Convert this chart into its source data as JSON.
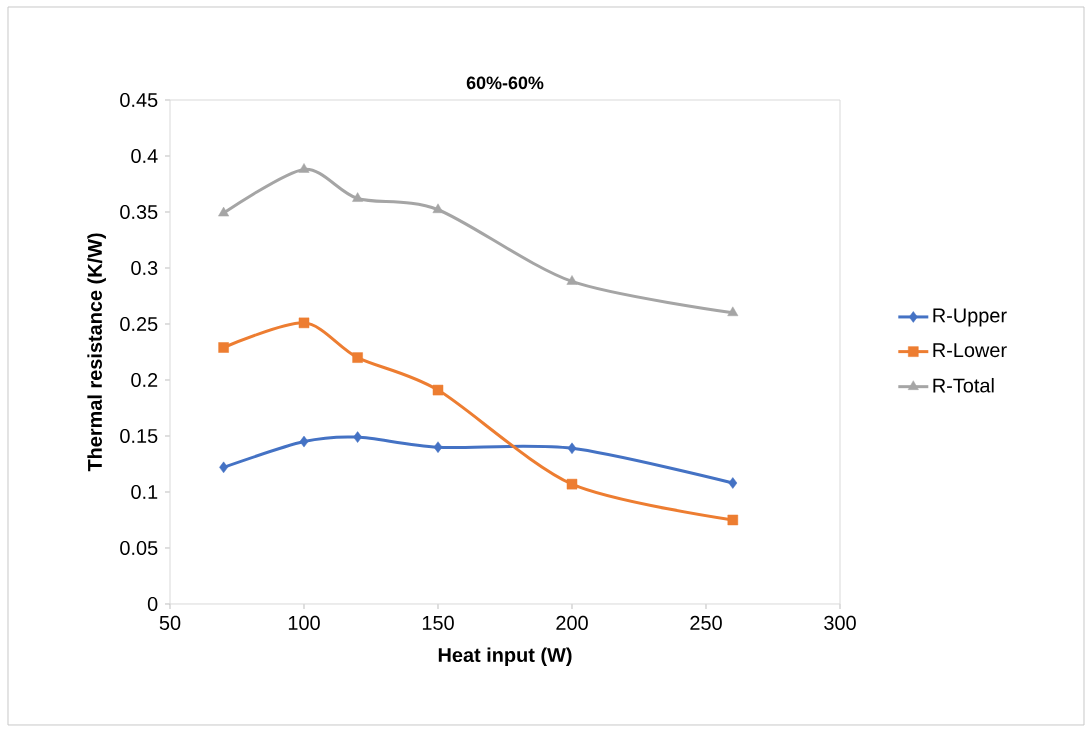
{
  "chart_data": {
    "type": "line",
    "title": "60%-60%",
    "xlabel": "Heat input (W)",
    "ylabel": "Thermal resistance (K/W)",
    "x": [
      70,
      100,
      120,
      150,
      200,
      260
    ],
    "series": [
      {
        "name": "R-Upper",
        "color": "#4472c4",
        "marker": "diamond",
        "values": [
          0.122,
          0.145,
          0.149,
          0.14,
          0.139,
          0.108
        ]
      },
      {
        "name": "R-Lower",
        "color": "#ed7d31",
        "marker": "square",
        "values": [
          0.229,
          0.251,
          0.22,
          0.191,
          0.107,
          0.075
        ]
      },
      {
        "name": "R-Total",
        "color": "#a5a5a5",
        "marker": "triangle",
        "values": [
          0.349,
          0.388,
          0.362,
          0.352,
          0.288,
          0.26
        ]
      }
    ],
    "xlim": [
      50,
      300
    ],
    "xticks": [
      50,
      100,
      150,
      200,
      250,
      300
    ],
    "ylim": [
      0,
      0.45
    ],
    "yticks": [
      0,
      0.05,
      0.1,
      0.15,
      0.2,
      0.25,
      0.3,
      0.35,
      0.4,
      0.45
    ],
    "grid": false,
    "legend": "right",
    "line_style": "solid"
  }
}
